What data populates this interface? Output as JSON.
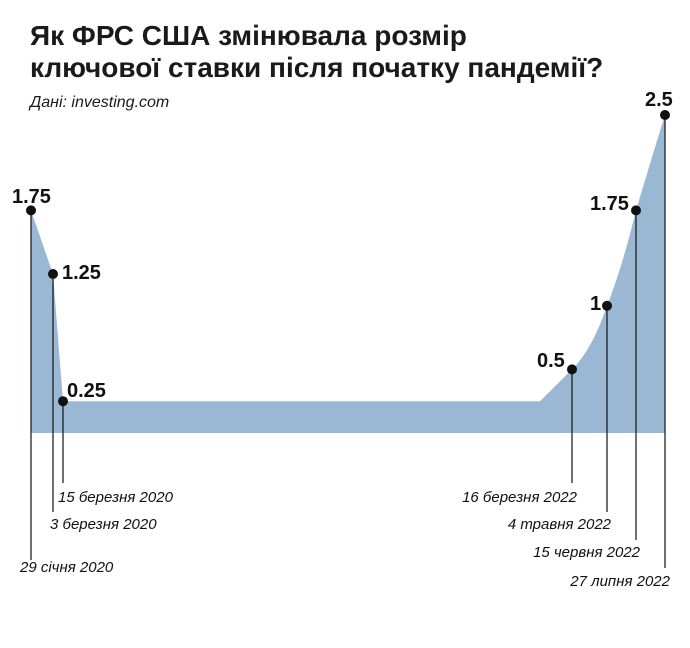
{
  "title_lines": [
    "Як ФРС США змінювала розмір",
    "ключової ставки після початку пандемії?"
  ],
  "source": "Дані: investing.com",
  "colors": {
    "area": "#9ab8d3",
    "marker": "#111111",
    "text": "#1a1a1a"
  },
  "chart_data": {
    "type": "area",
    "title": "Як ФРС США змінювала розмір ключової ставки після початку пандемії?",
    "ylim": [
      0,
      2.5
    ],
    "points": [
      {
        "date": "29 січня 2020",
        "value": 1.75,
        "value_label": "1.75"
      },
      {
        "date": "3 березня 2020",
        "value": 1.25,
        "value_label": "1.25"
      },
      {
        "date": "15 березня 2020",
        "value": 0.25,
        "value_label": "0.25"
      },
      {
        "date": "16 березня 2022",
        "value": 0.5,
        "value_label": "0.5"
      },
      {
        "date": "4 травня 2022",
        "value": 1,
        "value_label": "1"
      },
      {
        "date": "15 червня 2022",
        "value": 1.75,
        "value_label": "1.75"
      },
      {
        "date": "27 липня 2022",
        "value": 2.5,
        "value_label": "2.5"
      }
    ]
  }
}
